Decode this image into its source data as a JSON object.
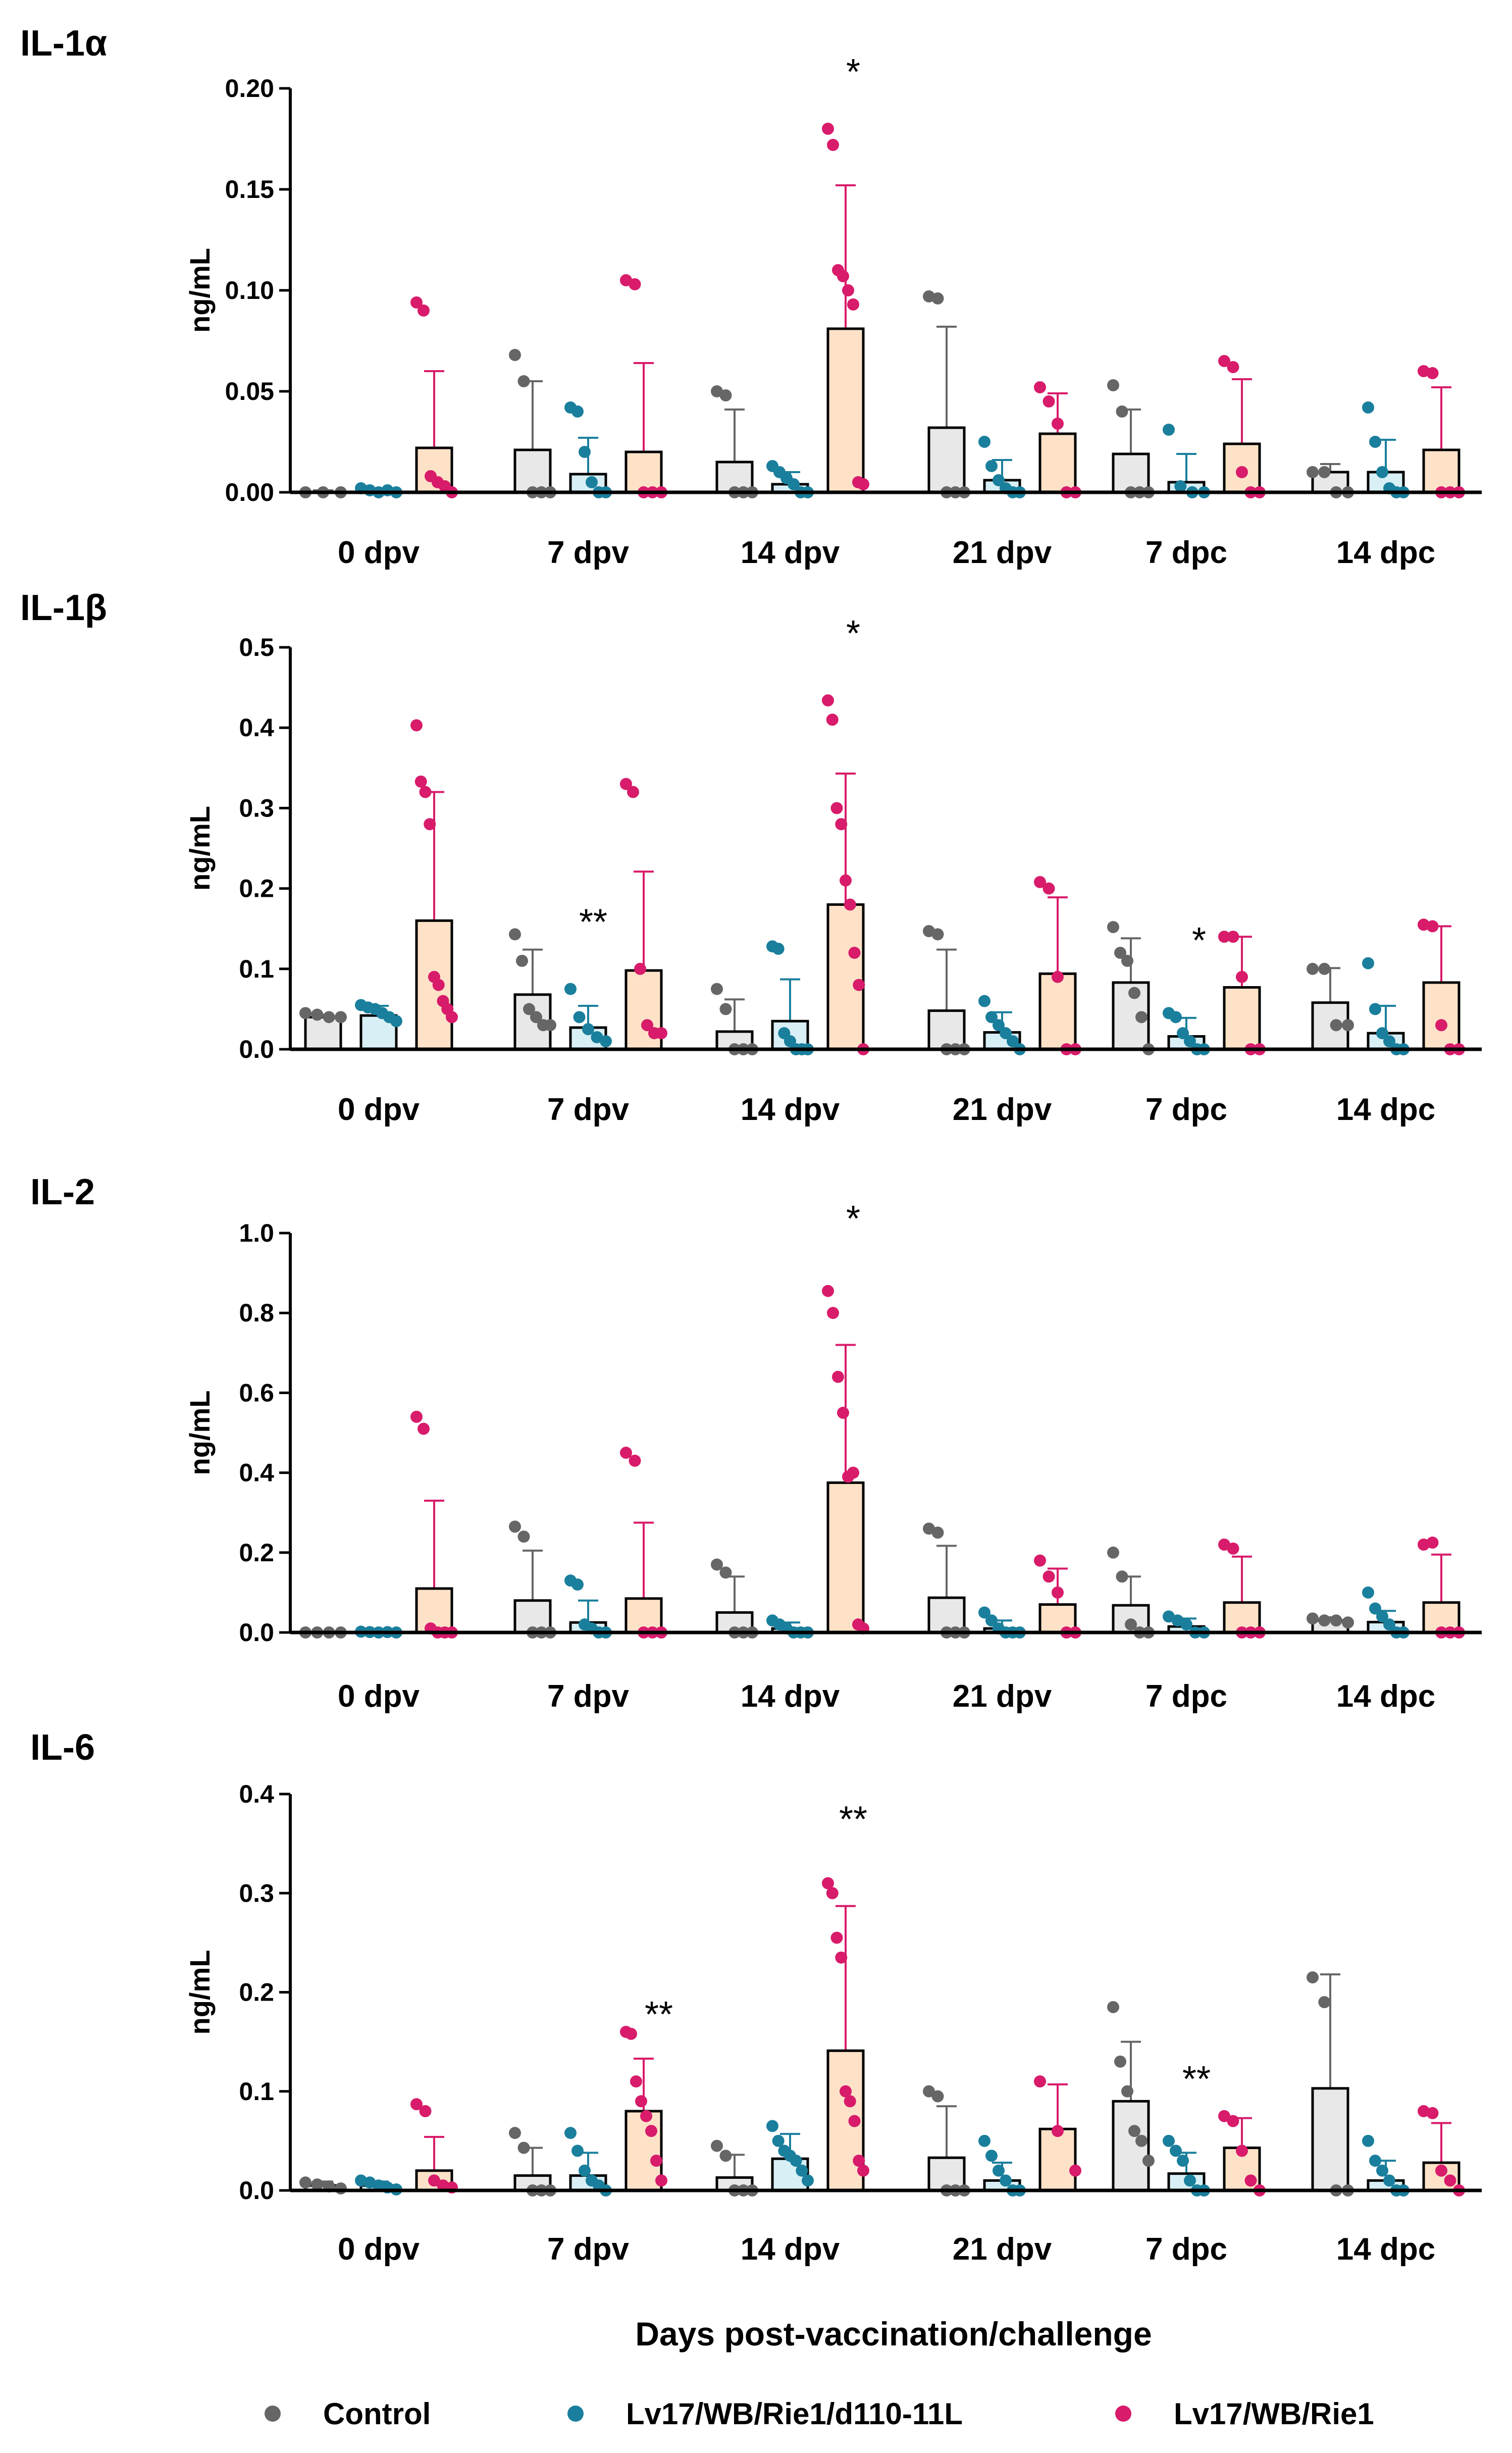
{
  "figure": {
    "xlabel": "Days post-vaccination/challenge",
    "legend": [
      {
        "name": "Control",
        "color": "#666666",
        "fill": "#e8e8e8"
      },
      {
        "name": "Lv17/WB/Rie1/d110-11L",
        "color": "#1a7f9c",
        "fill": "#d7eff5"
      },
      {
        "name": "Lv17/WB/Rie1",
        "color": "#d81b6a",
        "fill": "#fde2c8"
      }
    ]
  },
  "chart_data": [
    {
      "type": "bar",
      "title": "IL-1α",
      "ylabel": "ng/mL",
      "xlabel": "Days post-vaccination/challenge",
      "ylim": [
        0,
        0.2
      ],
      "yticks": [
        "0.00",
        "0.05",
        "0.10",
        "0.15",
        "0.20"
      ],
      "categories": [
        "0 dpv",
        "7 dpv",
        "14 dpv",
        "21 dpv",
        "7 dpc",
        "14 dpc"
      ],
      "series": [
        {
          "name": "Control",
          "values": [
            0.0,
            0.021,
            0.015,
            0.032,
            0.019,
            0.01
          ],
          "sd": [
            0.001,
            0.034,
            0.026,
            0.05,
            0.022,
            0.004
          ],
          "points": [
            [
              0,
              0,
              0
            ],
            [
              0.068,
              0.055,
              0,
              0,
              0
            ],
            [
              0.05,
              0.048,
              0,
              0,
              0
            ],
            [
              0.097,
              0.096,
              0,
              0,
              0
            ],
            [
              0.053,
              0.04,
              0,
              0,
              0
            ],
            [
              0.01,
              0.01,
              0,
              0
            ]
          ]
        },
        {
          "name": "Lv17/WB/Rie1/d110-11L",
          "values": [
            0.001,
            0.009,
            0.004,
            0.006,
            0.005,
            0.01
          ],
          "sd": [
            0.001,
            0.018,
            0.006,
            0.01,
            0.014,
            0.016
          ],
          "points": [
            [
              0.002,
              0.001,
              0,
              0.001,
              0
            ],
            [
              0.042,
              0.04,
              0.02,
              0.005,
              0,
              0
            ],
            [
              0.013,
              0.01,
              0.007,
              0.004,
              0,
              0
            ],
            [
              0.025,
              0.013,
              0.006,
              0.002,
              0,
              0
            ],
            [
              0.031,
              0.003,
              0,
              0
            ],
            [
              0.042,
              0.025,
              0.01,
              0.002,
              0,
              0
            ]
          ]
        },
        {
          "name": "Lv17/WB/Rie1",
          "values": [
            0.022,
            0.02,
            0.081,
            0.029,
            0.024,
            0.021
          ],
          "sd": [
            0.038,
            0.044,
            0.071,
            0.02,
            0.032,
            0.031
          ],
          "points": [
            [
              0.094,
              0.09,
              0.008,
              0.005,
              0.003,
              0
            ],
            [
              0.105,
              0.103,
              0,
              0,
              0
            ],
            [
              0.18,
              0.172,
              0.11,
              0.107,
              0.1,
              0.093,
              0.005,
              0.004
            ],
            [
              0.052,
              0.045,
              0.034,
              0,
              0
            ],
            [
              0.065,
              0.062,
              0.01,
              0,
              0
            ],
            [
              0.06,
              0.059,
              0,
              0,
              0
            ]
          ]
        }
      ],
      "significance": [
        {
          "category": "14 dpv",
          "label": "*",
          "value": 0.202
        }
      ]
    },
    {
      "type": "bar",
      "title": "IL-1β",
      "ylabel": "ng/mL",
      "xlabel": "Days post-vaccination/challenge",
      "ylim": [
        0,
        0.5
      ],
      "yticks": [
        "0.0",
        "0.1",
        "0.2",
        "0.3",
        "0.4",
        "0.5"
      ],
      "categories": [
        "0 dpv",
        "7 dpv",
        "14 dpv",
        "21 dpv",
        "7 dpc",
        "14 dpc"
      ],
      "series": [
        {
          "name": "Control",
          "values": [
            0.04,
            0.068,
            0.022,
            0.048,
            0.083,
            0.058
          ],
          "sd": [
            0.003,
            0.056,
            0.04,
            0.076,
            0.055,
            0.043
          ],
          "points": [
            [
              0.045,
              0.043,
              0.04,
              0.04
            ],
            [
              0.143,
              0.11,
              0.05,
              0.04,
              0.03,
              0.03
            ],
            [
              0.075,
              0.05,
              0,
              0,
              0
            ],
            [
              0.147,
              0.143,
              0,
              0,
              0
            ],
            [
              0.152,
              0.12,
              0.11,
              0.07,
              0.04,
              0
            ],
            [
              0.1,
              0.1,
              0.03,
              0.03
            ]
          ]
        },
        {
          "name": "Lv17/WB/Rie1/d110-11L",
          "values": [
            0.042,
            0.027,
            0.035,
            0.021,
            0.016,
            0.02
          ],
          "sd": [
            0.012,
            0.027,
            0.052,
            0.025,
            0.023,
            0.034
          ],
          "points": [
            [
              0.055,
              0.052,
              0.05,
              0.045,
              0.04,
              0.035
            ],
            [
              0.075,
              0.04,
              0.025,
              0.015,
              0.01
            ],
            [
              0.128,
              0.125,
              0.02,
              0.01,
              0,
              0,
              0
            ],
            [
              0.06,
              0.04,
              0.03,
              0.02,
              0.01,
              0
            ],
            [
              0.045,
              0.04,
              0.02,
              0.01,
              0,
              0
            ],
            [
              0.107,
              0.05,
              0.02,
              0.01,
              0,
              0
            ]
          ]
        },
        {
          "name": "Lv17/WB/Rie1",
          "values": [
            0.16,
            0.098,
            0.18,
            0.094,
            0.077,
            0.083
          ],
          "sd": [
            0.16,
            0.123,
            0.163,
            0.095,
            0.063,
            0.07
          ],
          "points": [
            [
              0.403,
              0.333,
              0.32,
              0.28,
              0.09,
              0.08,
              0.06,
              0.05,
              0.04
            ],
            [
              0.33,
              0.32,
              0.1,
              0.03,
              0.02,
              0.02
            ],
            [
              0.434,
              0.41,
              0.3,
              0.28,
              0.21,
              0.18,
              0.12,
              0.08,
              0
            ],
            [
              0.208,
              0.2,
              0.09,
              0,
              0
            ],
            [
              0.14,
              0.14,
              0.09,
              0,
              0
            ],
            [
              0.155,
              0.153,
              0.03,
              0,
              0
            ]
          ]
        }
      ],
      "significance": [
        {
          "category": "14 dpv",
          "label": "*",
          "value": 0.502
        },
        {
          "category": "7 dpv",
          "label": "**",
          "value": 0.143
        },
        {
          "category": "7 dpc",
          "label": "*",
          "value": 0.12
        }
      ]
    },
    {
      "type": "bar",
      "title": "IL-2",
      "ylabel": "ng/mL",
      "xlabel": "Days post-vaccination/challenge",
      "ylim": [
        0,
        1.0
      ],
      "yticks": [
        "0.0",
        "0.2",
        "0.4",
        "0.6",
        "0.8",
        "1.0"
      ],
      "categories": [
        "0 dpv",
        "7 dpv",
        "14 dpv",
        "21 dpv",
        "7 dpc",
        "14 dpc"
      ],
      "series": [
        {
          "name": "Control",
          "values": [
            0.0,
            0.08,
            0.05,
            0.087,
            0.068,
            0.03
          ],
          "sd": [
            0.001,
            0.125,
            0.09,
            0.13,
            0.072,
            0.008
          ],
          "points": [
            [
              0,
              0,
              0,
              0
            ],
            [
              0.265,
              0.24,
              0,
              0,
              0
            ],
            [
              0.17,
              0.15,
              0,
              0,
              0
            ],
            [
              0.26,
              0.25,
              0,
              0,
              0
            ],
            [
              0.2,
              0.14,
              0.02,
              0,
              0
            ],
            [
              0.035,
              0.03,
              0.03,
              0.025
            ]
          ]
        },
        {
          "name": "Lv17/WB/Rie1/d110-11L",
          "values": [
            0.002,
            0.025,
            0.01,
            0.01,
            0.015,
            0.026
          ],
          "sd": [
            0.002,
            0.055,
            0.015,
            0.02,
            0.02,
            0.028
          ],
          "points": [
            [
              0.002,
              0.001,
              0,
              0.001,
              0
            ],
            [
              0.13,
              0.12,
              0.02,
              0.01,
              0,
              0
            ],
            [
              0.03,
              0.02,
              0.01,
              0,
              0,
              0
            ],
            [
              0.05,
              0.03,
              0.01,
              0,
              0,
              0
            ],
            [
              0.04,
              0.03,
              0.02,
              0,
              0
            ],
            [
              0.1,
              0.06,
              0.04,
              0.02,
              0,
              0
            ]
          ]
        },
        {
          "name": "Lv17/WB/Rie1",
          "values": [
            0.11,
            0.085,
            0.375,
            0.07,
            0.075,
            0.075
          ],
          "sd": [
            0.22,
            0.19,
            0.345,
            0.09,
            0.115,
            0.12
          ],
          "points": [
            [
              0.54,
              0.51,
              0.01,
              0,
              0,
              0
            ],
            [
              0.45,
              0.43,
              0,
              0,
              0
            ],
            [
              0.855,
              0.8,
              0.64,
              0.55,
              0.39,
              0.4,
              0.02,
              0.01
            ],
            [
              0.18,
              0.14,
              0.1,
              0,
              0
            ],
            [
              0.22,
              0.21,
              0,
              0,
              0
            ],
            [
              0.22,
              0.225,
              0,
              0,
              0
            ]
          ]
        }
      ],
      "significance": [
        {
          "category": "14 dpv",
          "label": "*",
          "value": 1.005
        }
      ]
    },
    {
      "type": "bar",
      "title": "IL-6",
      "ylabel": "ng/mL",
      "xlabel": "Days post-vaccination/challenge",
      "ylim": [
        0,
        0.4
      ],
      "yticks": [
        "0.0",
        "0.1",
        "0.2",
        "0.3",
        "0.4"
      ],
      "categories": [
        "0 dpv",
        "7 dpv",
        "14 dpv",
        "21 dpv",
        "7 dpc",
        "14 dpc"
      ],
      "series": [
        {
          "name": "Control",
          "values": [
            0.005,
            0.015,
            0.013,
            0.033,
            0.09,
            0.103
          ],
          "sd": [
            0.004,
            0.028,
            0.023,
            0.052,
            0.06,
            0.115
          ],
          "points": [
            [
              0.008,
              0.006,
              0.004,
              0.002
            ],
            [
              0.058,
              0.043,
              0,
              0,
              0
            ],
            [
              0.045,
              0.035,
              0,
              0,
              0
            ],
            [
              0.1,
              0.095,
              0,
              0,
              0
            ],
            [
              0.185,
              0.13,
              0.1,
              0.06,
              0.05,
              0.03
            ],
            [
              0.215,
              0.19,
              0,
              0
            ]
          ]
        },
        {
          "name": "Lv17/WB/Rie1/d110-11L",
          "values": [
            0.005,
            0.015,
            0.032,
            0.01,
            0.017,
            0.01
          ],
          "sd": [
            0.004,
            0.023,
            0.025,
            0.018,
            0.021,
            0.02
          ],
          "points": [
            [
              0.01,
              0.008,
              0.005,
              0.003,
              0.001
            ],
            [
              0.058,
              0.04,
              0.02,
              0.01,
              0.005,
              0
            ],
            [
              0.065,
              0.05,
              0.04,
              0.035,
              0.03,
              0.02,
              0.01
            ],
            [
              0.05,
              0.035,
              0.02,
              0.01,
              0,
              0
            ],
            [
              0.05,
              0.04,
              0.03,
              0.01,
              0,
              0
            ],
            [
              0.05,
              0.03,
              0.02,
              0.01,
              0,
              0
            ]
          ]
        },
        {
          "name": "Lv17/WB/Rie1",
          "values": [
            0.02,
            0.08,
            0.141,
            0.062,
            0.043,
            0.028
          ],
          "sd": [
            0.034,
            0.053,
            0.146,
            0.045,
            0.03,
            0.04
          ],
          "points": [
            [
              0.087,
              0.08,
              0.01,
              0.005,
              0.003
            ],
            [
              0.16,
              0.158,
              0.11,
              0.09,
              0.075,
              0.06,
              0.03,
              0.01
            ],
            [
              0.31,
              0.3,
              0.255,
              0.235,
              0.1,
              0.09,
              0.07,
              0.03,
              0.02
            ],
            [
              0.11,
              0.06,
              0.02
            ],
            [
              0.075,
              0.07,
              0.04,
              0.01,
              0
            ],
            [
              0.08,
              0.078,
              0.02,
              0.01,
              0
            ]
          ]
        }
      ],
      "significance": [
        {
          "category": "7 dpv",
          "label": "**",
          "value": 0.165
        },
        {
          "category": "14 dpv",
          "label": "**",
          "value": 0.362
        },
        {
          "category": "7 dpc",
          "label": "**",
          "value": 0.1
        }
      ]
    }
  ]
}
